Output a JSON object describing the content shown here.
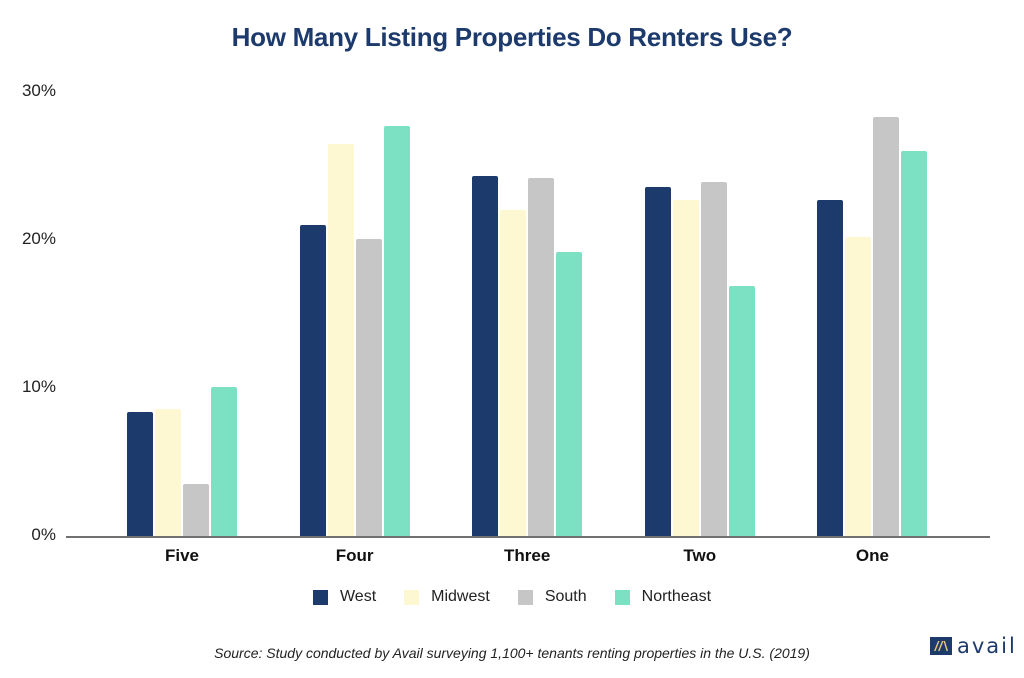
{
  "title": "How Many Listing Properties Do Renters Use?",
  "source": "Source: Study conducted by Avail surveying 1,100+ tenants renting properties in the U.S. (2019)",
  "logo": {
    "text": "avail"
  },
  "colors": {
    "West": "#1c3a6b",
    "Midwest": "#fdf8d2",
    "South": "#c6c6c6",
    "Northeast": "#7ce0c3",
    "title": "#1c3a6b"
  },
  "chart_data": {
    "type": "bar",
    "title": "How Many Listing Properties Do Renters Use?",
    "xlabel": "",
    "ylabel": "",
    "ylim": [
      0,
      30
    ],
    "yticks": [
      "0%",
      "10%",
      "20%",
      "30%"
    ],
    "grid": false,
    "legend_position": "bottom",
    "categories": [
      "Five",
      "Four",
      "Three",
      "Two",
      "One"
    ],
    "series": [
      {
        "name": "West",
        "color": "#1c3a6b",
        "values": [
          8.4,
          21.0,
          24.3,
          23.6,
          22.7
        ]
      },
      {
        "name": "Midwest",
        "color": "#fdf8d2",
        "values": [
          8.6,
          26.5,
          22.0,
          22.7,
          20.2
        ]
      },
      {
        "name": "South",
        "color": "#c6c6c6",
        "values": [
          3.5,
          20.1,
          24.2,
          23.9,
          28.3
        ]
      },
      {
        "name": "Northeast",
        "color": "#7ce0c3",
        "values": [
          10.1,
          27.7,
          19.2,
          16.9,
          26.0
        ]
      }
    ]
  }
}
